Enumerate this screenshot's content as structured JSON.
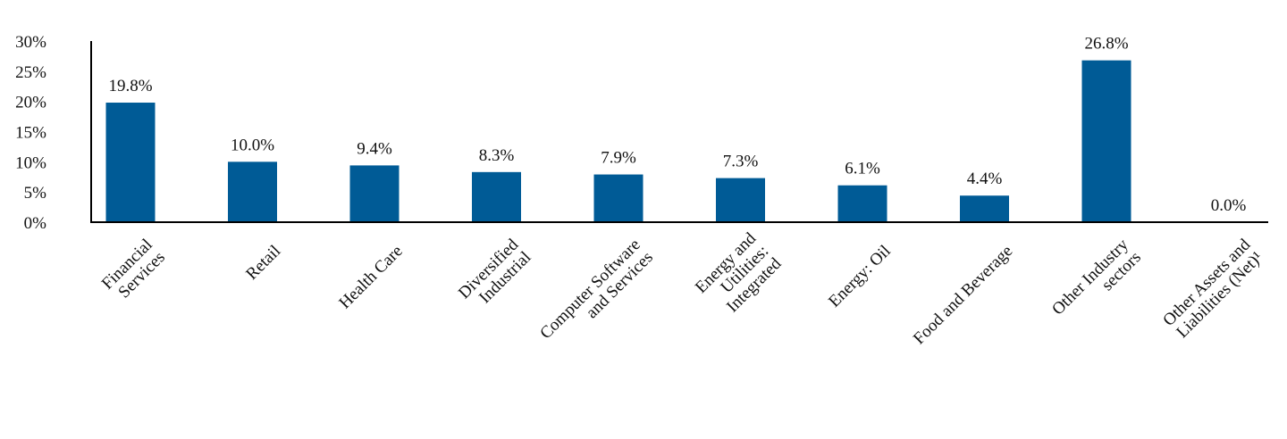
{
  "chart_data": {
    "type": "bar",
    "categories": [
      [
        "Financial",
        "Services"
      ],
      [
        "Retail"
      ],
      [
        "Health Care"
      ],
      [
        "Diversified",
        "Industrial"
      ],
      [
        "Computer Software",
        "and Services"
      ],
      [
        "Energy and",
        "Utilities:",
        "Integrated"
      ],
      [
        "Energy: Oil"
      ],
      [
        "Food and Beverage"
      ],
      [
        "Other Industry",
        "sectors"
      ],
      [
        "Other Assets and",
        "Liabilities (Net)¹"
      ]
    ],
    "values": [
      19.8,
      10.0,
      9.4,
      8.3,
      7.9,
      7.3,
      6.1,
      4.4,
      26.8,
      0.0
    ],
    "data_labels": [
      "19.8%",
      "10.0%",
      "9.4%",
      "8.3%",
      "7.9%",
      "7.3%",
      "6.1%",
      "4.4%",
      "26.8%",
      "0.0%"
    ],
    "y_ticks": [
      0,
      5,
      10,
      15,
      20,
      25,
      30
    ],
    "y_tick_labels": [
      "0%",
      "5%",
      "10%",
      "15%",
      "20%",
      "25%",
      "30%"
    ],
    "ylim": [
      0,
      30
    ],
    "title": "",
    "xlabel": "",
    "ylabel": "",
    "grid": false,
    "legend": "none",
    "bar_color": "#005B96"
  }
}
